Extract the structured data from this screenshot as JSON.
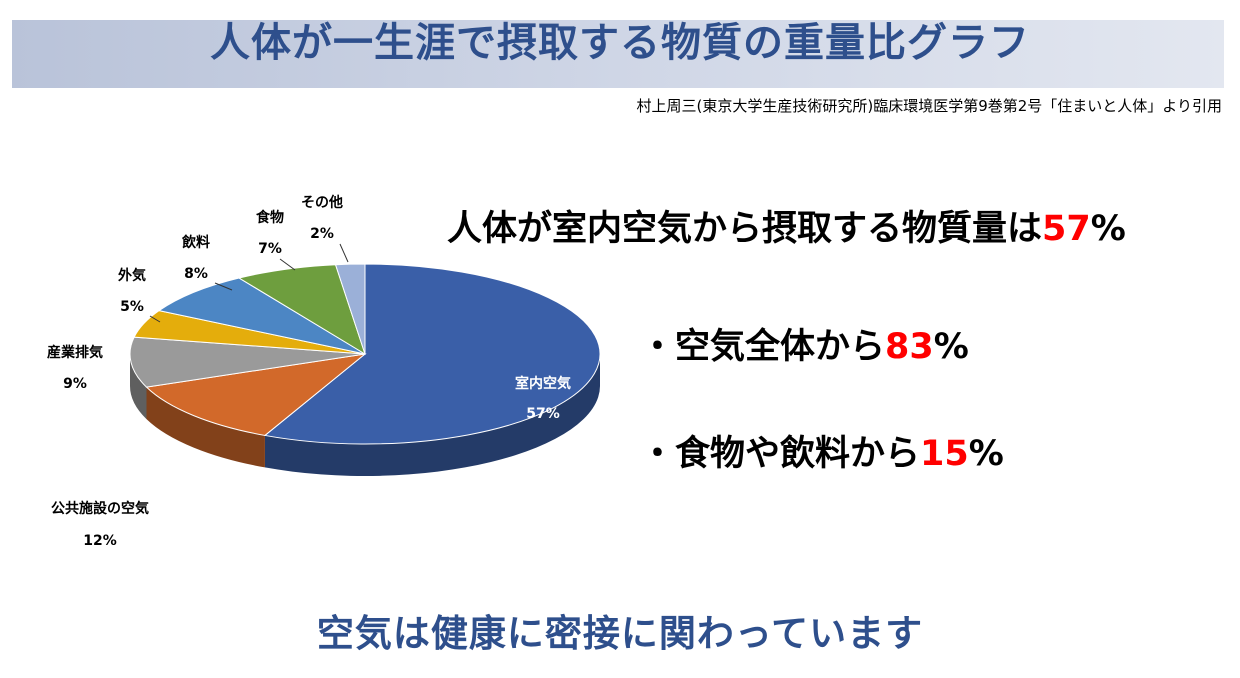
{
  "header": {
    "title": "人体が一生涯で摂取する物質の重量比グラフ",
    "source": "村上周三(東京大学生産技術研究所)臨床環境医学第9巻第2号「住まいと人体」より引用"
  },
  "headline": {
    "text": "人体が室内空気から摂取する物質量は",
    "value": "57",
    "unit": "%"
  },
  "bullets": [
    {
      "marker": "・",
      "text": "空気全体から",
      "value": "83",
      "unit": "%"
    },
    {
      "marker": "・",
      "text": "食物や飲料から",
      "value": "15",
      "unit": "%"
    }
  ],
  "footer": {
    "text": "空気は健康に密接に関わっています"
  },
  "chart_data": {
    "type": "pie",
    "title": "",
    "slices": [
      {
        "label": "室内空気",
        "percent_label": "57%",
        "value": 57,
        "color": "#3a5fa8"
      },
      {
        "label": "公共施設の空気",
        "percent_label": "12%",
        "value": 12,
        "color": "#d2692a"
      },
      {
        "label": "産業排気",
        "percent_label": "9%",
        "value": 9,
        "color": "#9a9a9a"
      },
      {
        "label": "外気",
        "percent_label": "5%",
        "value": 5,
        "color": "#e4ad0c"
      },
      {
        "label": "飲料",
        "percent_label": "8%",
        "value": 8,
        "color": "#4c86c4"
      },
      {
        "label": "食物",
        "percent_label": "7%",
        "value": 7,
        "color": "#6e9e3e"
      },
      {
        "label": "その他",
        "percent_label": "2%",
        "value": 2,
        "color": "#9bb0d8"
      }
    ],
    "legend": "none"
  }
}
